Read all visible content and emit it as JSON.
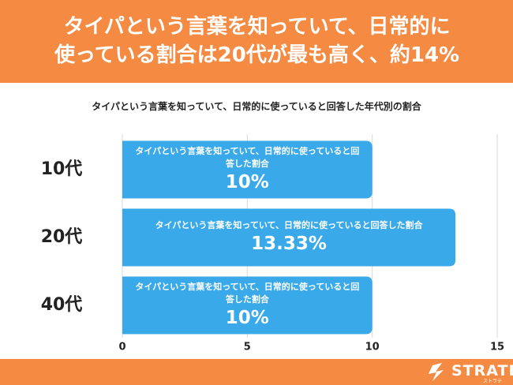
{
  "chart_data": {
    "type": "bar",
    "orientation": "horizontal",
    "title": "タイパという言葉を知っていて、日常的に使っている割合は20代が最も高く、約14%",
    "subtitle": "タイパという言葉を知っていて、日常的に使っていると回答した年代別の割合",
    "categories": [
      "10代",
      "20代",
      "40代"
    ],
    "series": [
      {
        "name": "タイパという言葉を知っていて、日常的に使っていると回答した割合",
        "color": "#3aa9ea",
        "values": [
          10,
          13.33,
          10
        ],
        "value_labels": [
          "10%",
          "13.33%",
          "10%"
        ]
      }
    ],
    "xlim": [
      0,
      15
    ],
    "xticks": [
      0,
      5,
      10,
      15
    ],
    "grid": true
  },
  "footer": {
    "brand": "STRATE",
    "brand_kana": "ストラテ"
  }
}
